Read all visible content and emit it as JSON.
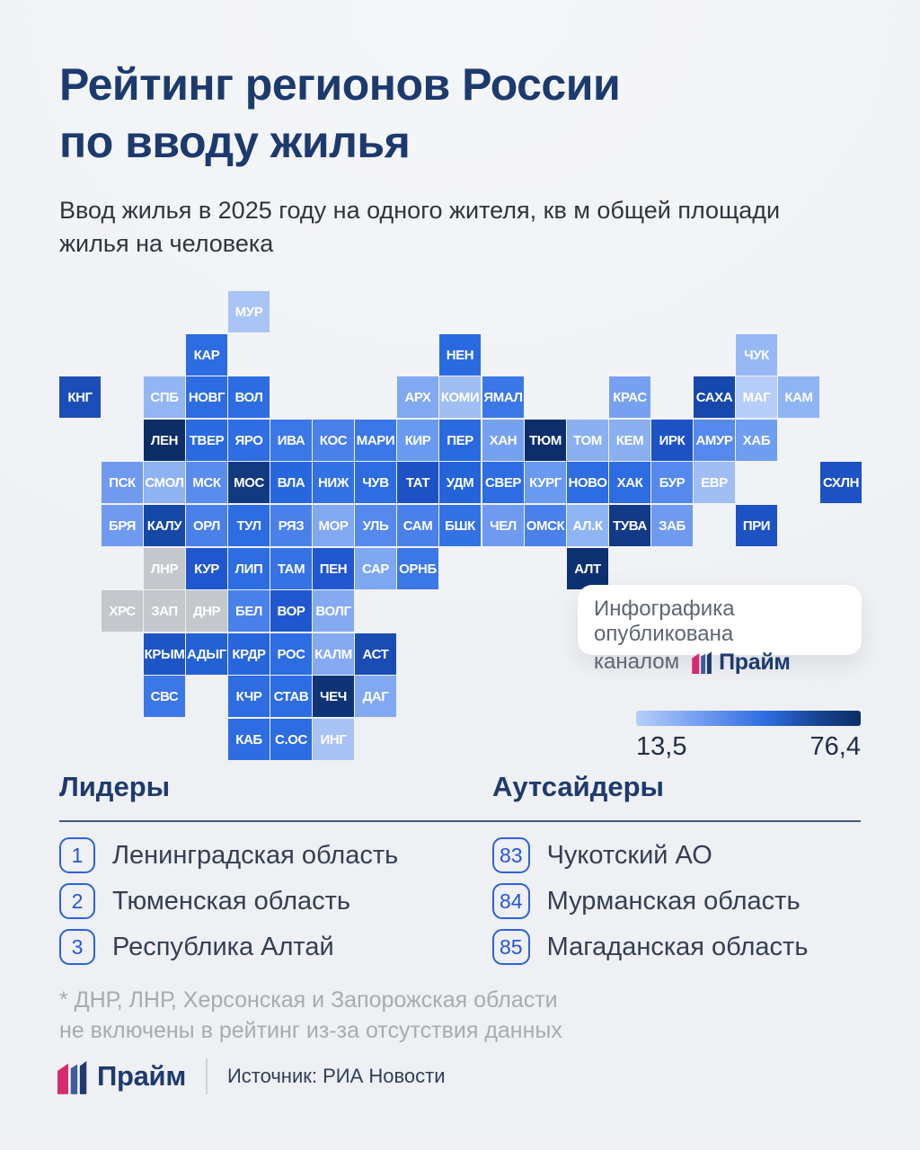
{
  "header": {
    "title_line1": "Рейтинг регионов России",
    "title_line2": "по вводу жилья",
    "subtitle_line1": "Ввод жилья в 2025 году на одного жителя, кв м общей площади",
    "subtitle_line2": "жилья на человека"
  },
  "badge": {
    "line1": "Инфографика опубликована",
    "line2_prefix": "каналом",
    "brand": "Прайм"
  },
  "lists": {
    "leaders_heading": "Лидеры",
    "outsiders_heading": "Аутсайдеры"
  },
  "footnote": {
    "line1": "* ДНР, ЛНР, Херсонская и Запорожская области",
    "line2": "не включены в рейтинг из-за отсутствия данных"
  },
  "footer": {
    "brand": "Прайм",
    "source": "Источник: РИА Новости"
  },
  "colors": {
    "accent_navy": "#1e3a6e",
    "brand_pink": "#d62a6e",
    "rank_blue": "#2457d6",
    "excluded_gray": "#c4c7cb"
  },
  "chart_data": {
    "type": "heatmap",
    "title": "Рейтинг регионов России по вводу жилья",
    "subtitle": "Ввод жилья в 2025 году на одного жителя, кв м общей площади жилья на человека",
    "legend": {
      "min": 13.5,
      "max": 76.4,
      "min_label": "13,5",
      "max_label": "76,4"
    },
    "leaders": [
      {
        "rank": "1",
        "name": "Ленинградская область"
      },
      {
        "rank": "2",
        "name": "Тюменская область"
      },
      {
        "rank": "3",
        "name": "Республика Алтай"
      }
    ],
    "outsiders": [
      {
        "rank": "83",
        "name": "Чукотский АО"
      },
      {
        "rank": "84",
        "name": "Мурманская область"
      },
      {
        "rank": "85",
        "name": "Магаданская область"
      }
    ],
    "excluded_regions": [
      "ХРС",
      "ЗАП",
      "ДНР",
      "ЛНР"
    ],
    "regions": [
      {
        "code": "МУР",
        "row": 1,
        "col": 5,
        "color": "#a9c4f5"
      },
      {
        "code": "КАР",
        "row": 2,
        "col": 4,
        "color": "#2d6ce1"
      },
      {
        "code": "НЕН",
        "row": 2,
        "col": 10,
        "color": "#2a6ae0"
      },
      {
        "code": "ЧУК",
        "row": 2,
        "col": 17,
        "color": "#97b8f4"
      },
      {
        "code": "КНГ",
        "row": 3,
        "col": 1,
        "color": "#1c4eb8"
      },
      {
        "code": "СПБ",
        "row": 3,
        "col": 3,
        "color": "#94b5f3"
      },
      {
        "code": "НОВГ",
        "row": 3,
        "col": 4,
        "color": "#2d6ce1"
      },
      {
        "code": "ВОЛ",
        "row": 3,
        "col": 5,
        "color": "#2d6ce1"
      },
      {
        "code": "АРХ",
        "row": 3,
        "col": 9,
        "color": "#82a8f2"
      },
      {
        "code": "КОМИ",
        "row": 3,
        "col": 10,
        "color": "#a0bdf4"
      },
      {
        "code": "ЯМАЛ",
        "row": 3,
        "col": 11,
        "color": "#3b77e7"
      },
      {
        "code": "КРАС",
        "row": 3,
        "col": 14,
        "color": "#76a1f0"
      },
      {
        "code": "САХА",
        "row": 3,
        "col": 16,
        "color": "#1648ad"
      },
      {
        "code": "МАГ",
        "row": 3,
        "col": 17,
        "color": "#b5cdf8"
      },
      {
        "code": "КАМ",
        "row": 3,
        "col": 18,
        "color": "#8fb4f4"
      },
      {
        "code": "ЛЕН",
        "row": 4,
        "col": 3,
        "color": "#0d2d67"
      },
      {
        "code": "ТВЕР",
        "row": 4,
        "col": 4,
        "color": "#2a6ae0"
      },
      {
        "code": "ЯРО",
        "row": 4,
        "col": 5,
        "color": "#2f6de2"
      },
      {
        "code": "ИВА",
        "row": 4,
        "col": 6,
        "color": "#3b77e7"
      },
      {
        "code": "КОС",
        "row": 4,
        "col": 7,
        "color": "#4a80ea"
      },
      {
        "code": "МАРИ",
        "row": 4,
        "col": 8,
        "color": "#3b77e7"
      },
      {
        "code": "КИР",
        "row": 4,
        "col": 9,
        "color": "#699af0"
      },
      {
        "code": "ПЕР",
        "row": 4,
        "col": 10,
        "color": "#2a6ae0"
      },
      {
        "code": "ХАН",
        "row": 4,
        "col": 11,
        "color": "#76a1f0"
      },
      {
        "code": "ТЮМ",
        "row": 4,
        "col": 12,
        "color": "#0e2e6b"
      },
      {
        "code": "ТОМ",
        "row": 4,
        "col": 13,
        "color": "#8ab0f2"
      },
      {
        "code": "КЕМ",
        "row": 4,
        "col": 14,
        "color": "#8ab0f2"
      },
      {
        "code": "ИРК",
        "row": 4,
        "col": 15,
        "color": "#1d52c4"
      },
      {
        "code": "АМУР",
        "row": 4,
        "col": 16,
        "color": "#5589ee"
      },
      {
        "code": "ХАБ",
        "row": 4,
        "col": 17,
        "color": "#6f9ef1"
      },
      {
        "code": "ПСК",
        "row": 5,
        "col": 2,
        "color": "#6f9af0"
      },
      {
        "code": "СМОЛ",
        "row": 5,
        "col": 3,
        "color": "#8fb2f0"
      },
      {
        "code": "МСК",
        "row": 5,
        "col": 4,
        "color": "#5a8ced"
      },
      {
        "code": "МОС",
        "row": 5,
        "col": 5,
        "color": "#123a80"
      },
      {
        "code": "ВЛА",
        "row": 5,
        "col": 6,
        "color": "#2767dd"
      },
      {
        "code": "НИЖ",
        "row": 5,
        "col": 7,
        "color": "#3372e4"
      },
      {
        "code": "ЧУВ",
        "row": 5,
        "col": 8,
        "color": "#2d6ce1"
      },
      {
        "code": "ТАТ",
        "row": 5,
        "col": 9,
        "color": "#1d52c4"
      },
      {
        "code": "УДМ",
        "row": 5,
        "col": 10,
        "color": "#2563d8"
      },
      {
        "code": "СВЕР",
        "row": 5,
        "col": 11,
        "color": "#2d6ce1"
      },
      {
        "code": "КУРГ",
        "row": 5,
        "col": 12,
        "color": "#699af0"
      },
      {
        "code": "НОВО",
        "row": 5,
        "col": 13,
        "color": "#2d6ce1"
      },
      {
        "code": "ХАК",
        "row": 5,
        "col": 14,
        "color": "#2d6ce1"
      },
      {
        "code": "БУР",
        "row": 5,
        "col": 15,
        "color": "#5589ee"
      },
      {
        "code": "ЕВР",
        "row": 5,
        "col": 16,
        "color": "#a0bdf4"
      },
      {
        "code": "СХЛН",
        "row": 5,
        "col": 19,
        "color": "#1d52c4"
      },
      {
        "code": "БРЯ",
        "row": 6,
        "col": 2,
        "color": "#6f9af0"
      },
      {
        "code": "КАЛУ",
        "row": 6,
        "col": 3,
        "color": "#1648a8"
      },
      {
        "code": "ОРЛ",
        "row": 6,
        "col": 4,
        "color": "#4a80ea"
      },
      {
        "code": "ТУЛ",
        "row": 6,
        "col": 5,
        "color": "#2d6ce1"
      },
      {
        "code": "РЯЗ",
        "row": 6,
        "col": 6,
        "color": "#4a80ea"
      },
      {
        "code": "МОР",
        "row": 6,
        "col": 7,
        "color": "#82a8f2"
      },
      {
        "code": "УЛЬ",
        "row": 6,
        "col": 8,
        "color": "#5589ee"
      },
      {
        "code": "САМ",
        "row": 6,
        "col": 9,
        "color": "#4a80ea"
      },
      {
        "code": "БШК",
        "row": 6,
        "col": 10,
        "color": "#3372e4"
      },
      {
        "code": "ЧЕЛ",
        "row": 6,
        "col": 11,
        "color": "#6f9af0"
      },
      {
        "code": "ОМСК",
        "row": 6,
        "col": 12,
        "color": "#4a80ea"
      },
      {
        "code": "АЛ.К",
        "row": 6,
        "col": 13,
        "color": "#8fb4f4"
      },
      {
        "code": "ТУВА",
        "row": 6,
        "col": 14,
        "color": "#123a86"
      },
      {
        "code": "ЗАБ",
        "row": 6,
        "col": 15,
        "color": "#6f9af0"
      },
      {
        "code": "ПРИ",
        "row": 6,
        "col": 17,
        "color": "#1d52c4"
      },
      {
        "code": "ЛНР",
        "row": 7,
        "col": 3,
        "color": "#c4c7cb",
        "excluded": true
      },
      {
        "code": "КУР",
        "row": 7,
        "col": 4,
        "color": "#2157ce"
      },
      {
        "code": "ЛИП",
        "row": 7,
        "col": 5,
        "color": "#2d6ce1"
      },
      {
        "code": "ТАМ",
        "row": 7,
        "col": 6,
        "color": "#3672e4"
      },
      {
        "code": "ПЕН",
        "row": 7,
        "col": 7,
        "color": "#2157ce"
      },
      {
        "code": "САР",
        "row": 7,
        "col": 8,
        "color": "#7ea7f2"
      },
      {
        "code": "ОРНБ",
        "row": 7,
        "col": 9,
        "color": "#3b77e7"
      },
      {
        "code": "АЛТ",
        "row": 7,
        "col": 13,
        "color": "#0d316f"
      },
      {
        "code": "ХРС",
        "row": 8,
        "col": 2,
        "color": "#c4c7cb",
        "excluded": true
      },
      {
        "code": "ЗАП",
        "row": 8,
        "col": 3,
        "color": "#c4c7cb",
        "excluded": true
      },
      {
        "code": "ДНР",
        "row": 8,
        "col": 4,
        "color": "#c4c7cb",
        "excluded": true
      },
      {
        "code": "БЕЛ",
        "row": 8,
        "col": 5,
        "color": "#4a80ea"
      },
      {
        "code": "ВОР",
        "row": 8,
        "col": 6,
        "color": "#2157ce"
      },
      {
        "code": "ВОЛГ",
        "row": 8,
        "col": 7,
        "color": "#85aaf2"
      },
      {
        "code": "КРЫМ",
        "row": 9,
        "col": 3,
        "color": "#1d55c6"
      },
      {
        "code": "АДЫГ",
        "row": 9,
        "col": 4,
        "color": "#2361d4"
      },
      {
        "code": "КРДР",
        "row": 9,
        "col": 5,
        "color": "#2765dc"
      },
      {
        "code": "РОС",
        "row": 9,
        "col": 6,
        "color": "#2d6ce1"
      },
      {
        "code": "КАЛМ",
        "row": 9,
        "col": 7,
        "color": "#85aaf2"
      },
      {
        "code": "АСТ",
        "row": 9,
        "col": 8,
        "color": "#1a4cb4"
      },
      {
        "code": "СВС",
        "row": 10,
        "col": 3,
        "color": "#3b77e7"
      },
      {
        "code": "КЧР",
        "row": 10,
        "col": 5,
        "color": "#2d6ce1"
      },
      {
        "code": "СТАВ",
        "row": 10,
        "col": 6,
        "color": "#2d6ce1"
      },
      {
        "code": "ЧЕЧ",
        "row": 10,
        "col": 7,
        "color": "#0f3374"
      },
      {
        "code": "ДАГ",
        "row": 10,
        "col": 8,
        "color": "#82a8f2"
      },
      {
        "code": "КАБ",
        "row": 11,
        "col": 5,
        "color": "#2d6ce1"
      },
      {
        "code": "С.ОС",
        "row": 11,
        "col": 6,
        "color": "#2d6ce1"
      },
      {
        "code": "ИНГ",
        "row": 11,
        "col": 7,
        "color": "#a9c2f4"
      }
    ]
  }
}
